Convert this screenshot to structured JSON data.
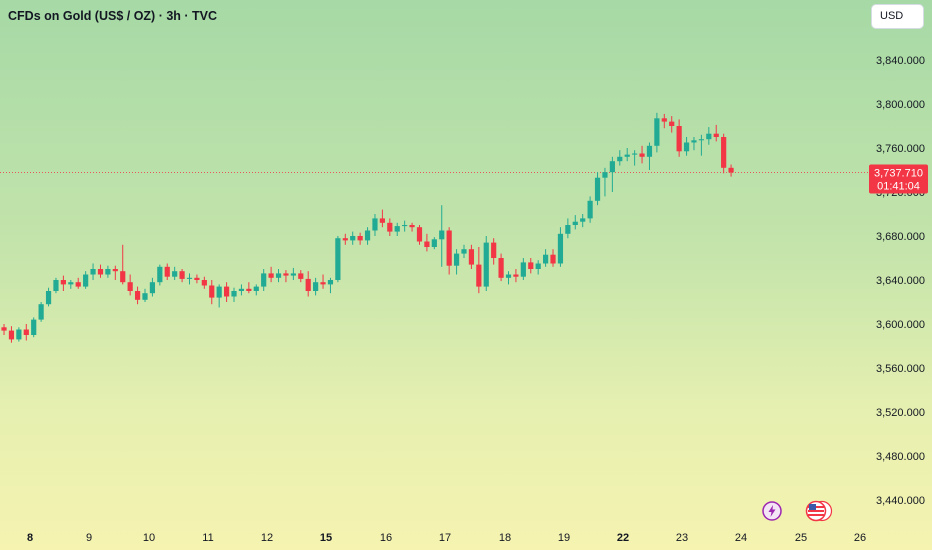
{
  "header": {
    "title": "CFDs on Gold (US$ / OZ) · 3h · TVC",
    "currency": "USD"
  },
  "price_label": {
    "price": "3,737.710",
    "countdown": "01:41:04"
  },
  "colors": {
    "up": "#22ab94",
    "down": "#f23645",
    "price_line": "#f23645",
    "text": "#131722",
    "event_icon": "#9c27b0"
  },
  "icons": {
    "events": "lightning-icon",
    "economic": "us-flag-icon"
  },
  "chart_data": {
    "type": "candlestick",
    "symbol": "CFDs on Gold (US$ / OZ)",
    "interval": "3h",
    "source": "TVC",
    "last_price": 3737.71,
    "ylim": [
      3420,
      3880
    ],
    "y_ticks": [
      3440,
      3480,
      3520,
      3560,
      3600,
      3640,
      3680,
      3720,
      3760,
      3800,
      3840
    ],
    "y_tick_labels": [
      "3,440.000",
      "3,480.000",
      "3,520.000",
      "3,560.000",
      "3,600.000",
      "3,640.000",
      "3,680.000",
      "3,720.000",
      "3,760.000",
      "3,800.000",
      "3,840.000"
    ],
    "x_ticks": [
      8,
      9,
      10,
      11,
      12,
      15,
      16,
      17,
      18,
      19,
      22,
      23,
      24,
      25,
      26
    ],
    "x_tick_labels": [
      "8",
      "9",
      "10",
      "11",
      "12",
      "15",
      "16",
      "17",
      "18",
      "19",
      "22",
      "23",
      "24",
      "25",
      "26"
    ],
    "x_tick_bold": [
      true,
      false,
      false,
      false,
      false,
      true,
      false,
      false,
      false,
      false,
      true,
      false,
      false,
      false,
      false
    ],
    "day_of_candle0": 7.5,
    "candles_per_day": 8,
    "candles": [
      [
        3597,
        3600,
        3590,
        3594
      ],
      [
        3594,
        3598,
        3583,
        3586
      ],
      [
        3586,
        3597,
        3584,
        3595
      ],
      [
        3595,
        3600,
        3585,
        3590
      ],
      [
        3590,
        3606,
        3588,
        3604
      ],
      [
        3604,
        3620,
        3602,
        3618
      ],
      [
        3618,
        3633,
        3616,
        3630
      ],
      [
        3630,
        3642,
        3628,
        3640
      ],
      [
        3640,
        3644,
        3630,
        3636
      ],
      [
        3636,
        3640,
        3632,
        3638
      ],
      [
        3638,
        3642,
        3632,
        3634
      ],
      [
        3634,
        3648,
        3632,
        3645
      ],
      [
        3645,
        3655,
        3640,
        3650
      ],
      [
        3650,
        3654,
        3642,
        3645
      ],
      [
        3645,
        3653,
        3642,
        3650
      ],
      [
        3650,
        3653,
        3640,
        3648
      ],
      [
        3648,
        3672,
        3636,
        3638
      ],
      [
        3638,
        3645,
        3626,
        3630
      ],
      [
        3630,
        3634,
        3618,
        3622
      ],
      [
        3622,
        3632,
        3620,
        3628
      ],
      [
        3628,
        3642,
        3625,
        3638
      ],
      [
        3638,
        3654,
        3635,
        3652
      ],
      [
        3652,
        3655,
        3640,
        3643
      ],
      [
        3643,
        3652,
        3640,
        3648
      ],
      [
        3648,
        3650,
        3638,
        3641
      ],
      [
        3641,
        3646,
        3636,
        3642
      ],
      [
        3642,
        3645,
        3637,
        3640
      ],
      [
        3640,
        3643,
        3632,
        3635
      ],
      [
        3635,
        3640,
        3618,
        3624
      ],
      [
        3624,
        3636,
        3615,
        3634
      ],
      [
        3634,
        3638,
        3620,
        3625
      ],
      [
        3625,
        3633,
        3620,
        3630
      ],
      [
        3630,
        3636,
        3626,
        3632
      ],
      [
        3632,
        3638,
        3628,
        3630
      ],
      [
        3630,
        3636,
        3626,
        3634
      ],
      [
        3634,
        3650,
        3630,
        3646
      ],
      [
        3646,
        3652,
        3638,
        3642
      ],
      [
        3642,
        3650,
        3638,
        3646
      ],
      [
        3646,
        3649,
        3638,
        3644
      ],
      [
        3644,
        3651,
        3640,
        3646
      ],
      [
        3646,
        3649,
        3638,
        3641
      ],
      [
        3641,
        3648,
        3625,
        3630
      ],
      [
        3630,
        3642,
        3626,
        3638
      ],
      [
        3638,
        3645,
        3632,
        3636
      ],
      [
        3636,
        3642,
        3628,
        3640
      ],
      [
        3640,
        3680,
        3638,
        3678
      ],
      [
        3678,
        3682,
        3672,
        3676
      ],
      [
        3676,
        3684,
        3672,
        3680
      ],
      [
        3680,
        3683,
        3672,
        3676
      ],
      [
        3676,
        3688,
        3672,
        3685
      ],
      [
        3685,
        3700,
        3680,
        3696
      ],
      [
        3696,
        3704,
        3688,
        3692
      ],
      [
        3692,
        3696,
        3680,
        3684
      ],
      [
        3684,
        3692,
        3680,
        3689
      ],
      [
        3689,
        3694,
        3684,
        3690
      ],
      [
        3690,
        3692,
        3684,
        3688
      ],
      [
        3688,
        3690,
        3672,
        3675
      ],
      [
        3675,
        3682,
        3666,
        3670
      ],
      [
        3670,
        3679,
        3668,
        3677
      ],
      [
        3677,
        3708,
        3652,
        3685
      ],
      [
        3685,
        3688,
        3645,
        3653
      ],
      [
        3653,
        3668,
        3645,
        3664
      ],
      [
        3664,
        3672,
        3660,
        3668
      ],
      [
        3668,
        3672,
        3650,
        3654
      ],
      [
        3654,
        3670,
        3628,
        3634
      ],
      [
        3634,
        3680,
        3630,
        3674
      ],
      [
        3674,
        3678,
        3654,
        3660
      ],
      [
        3660,
        3664,
        3639,
        3642
      ],
      [
        3642,
        3648,
        3636,
        3645
      ],
      [
        3645,
        3650,
        3638,
        3643
      ],
      [
        3643,
        3660,
        3640,
        3656
      ],
      [
        3656,
        3660,
        3646,
        3650
      ],
      [
        3650,
        3658,
        3645,
        3655
      ],
      [
        3655,
        3668,
        3652,
        3663
      ],
      [
        3663,
        3668,
        3652,
        3655
      ],
      [
        3655,
        3688,
        3652,
        3682
      ],
      [
        3682,
        3696,
        3678,
        3690
      ],
      [
        3690,
        3699,
        3686,
        3693
      ],
      [
        3693,
        3700,
        3688,
        3696
      ],
      [
        3696,
        3716,
        3692,
        3712
      ],
      [
        3712,
        3738,
        3708,
        3733
      ],
      [
        3733,
        3742,
        3716,
        3738
      ],
      [
        3738,
        3752,
        3720,
        3748
      ],
      [
        3748,
        3758,
        3744,
        3752
      ],
      [
        3752,
        3760,
        3748,
        3754
      ],
      [
        3754,
        3758,
        3744,
        3755
      ],
      [
        3755,
        3762,
        3746,
        3752
      ],
      [
        3752,
        3765,
        3740,
        3762
      ],
      [
        3762,
        3792,
        3756,
        3787
      ],
      [
        3787,
        3791,
        3778,
        3784
      ],
      [
        3784,
        3789,
        3774,
        3780
      ],
      [
        3780,
        3786,
        3752,
        3757
      ],
      [
        3757,
        3770,
        3753,
        3765
      ],
      [
        3765,
        3770,
        3758,
        3767
      ],
      [
        3767,
        3772,
        3753,
        3768
      ],
      [
        3768,
        3779,
        3763,
        3773
      ],
      [
        3773,
        3781,
        3766,
        3770
      ],
      [
        3770,
        3773,
        3737,
        3742
      ],
      [
        3742,
        3745,
        3734,
        3737.71
      ]
    ]
  }
}
